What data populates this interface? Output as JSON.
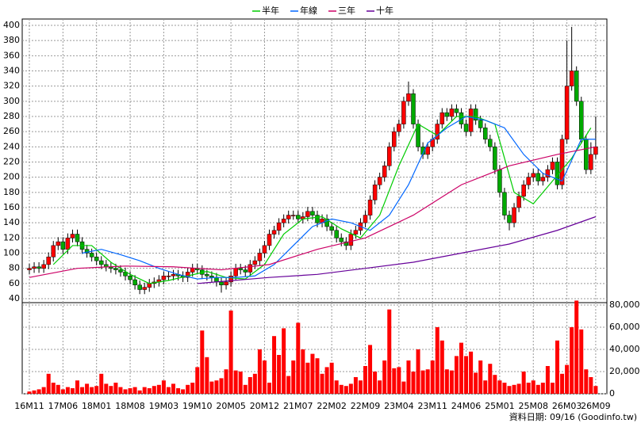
{
  "chart_data": {
    "type": "candlestick",
    "legend": [
      {
        "name": "半年",
        "color": "#00cc00"
      },
      {
        "name": "年線",
        "color": "#0066ff"
      },
      {
        "name": "三年",
        "color": "#cc0066"
      },
      {
        "name": "十年",
        "color": "#660099"
      }
    ],
    "footer": "資料日期: 09/16 (Goodinfo.tw)",
    "categories": [
      "16M11",
      null,
      null,
      null,
      null,
      null,
      null,
      "17M06",
      null,
      null,
      null,
      null,
      null,
      null,
      "18M01",
      null,
      null,
      null,
      null,
      null,
      null,
      "18M08",
      null,
      null,
      null,
      null,
      null,
      null,
      "19M03",
      null,
      null,
      null,
      null,
      null,
      null,
      "19M10",
      null,
      null,
      null,
      null,
      null,
      null,
      "20M05",
      null,
      null,
      null,
      null,
      null,
      null,
      "20M12",
      null,
      null,
      null,
      null,
      null,
      null,
      "21M07",
      null,
      null,
      null,
      null,
      null,
      null,
      "22M02",
      null,
      null,
      null,
      null,
      null,
      null,
      "22M09",
      null,
      null,
      null,
      null,
      null,
      null,
      "23M04",
      null,
      null,
      null,
      null,
      null,
      null,
      "23M11",
      null,
      null,
      null,
      null,
      null,
      null,
      "24M06",
      null,
      null,
      null,
      null,
      null,
      null,
      "25M01",
      null,
      null,
      null,
      null,
      null,
      null,
      "25M08",
      null,
      null,
      null,
      null,
      null,
      null,
      "26M03",
      null,
      null,
      null,
      null,
      null,
      "26M09"
    ],
    "open": [
      78,
      80,
      82,
      80,
      85,
      95,
      110,
      115,
      105,
      120,
      125,
      115,
      105,
      100,
      95,
      90,
      85,
      82,
      80,
      78,
      75,
      70,
      65,
      58,
      52,
      55,
      60,
      62,
      65,
      70,
      70,
      72,
      70,
      68,
      75,
      80,
      78,
      72,
      70,
      68,
      62,
      58,
      62,
      70,
      80,
      78,
      75,
      85,
      90,
      100,
      110,
      125,
      130,
      140,
      145,
      150,
      150,
      145,
      148,
      155,
      150,
      140,
      145,
      135,
      130,
      120,
      115,
      110,
      125,
      130,
      140,
      150,
      170,
      190,
      200,
      215,
      240,
      260,
      270,
      300,
      310,
      270,
      240,
      230,
      240,
      250,
      270,
      285,
      280,
      290,
      285,
      270,
      260,
      290,
      275,
      265,
      250,
      240,
      210,
      180,
      150,
      140,
      160,
      175,
      190,
      200,
      205,
      195,
      200,
      210,
      220,
      190,
      250,
      320,
      340,
      300,
      250,
      210,
      230
    ],
    "high": [
      86,
      88,
      88,
      91,
      101,
      116,
      121,
      121,
      126,
      131,
      131,
      121,
      111,
      106,
      101,
      96,
      91,
      88,
      86,
      84,
      81,
      76,
      71,
      64,
      61,
      66,
      68,
      71,
      76,
      76,
      78,
      78,
      76,
      81,
      86,
      86,
      84,
      78,
      76,
      74,
      68,
      68,
      76,
      86,
      86,
      84,
      91,
      96,
      106,
      116,
      131,
      136,
      146,
      151,
      156,
      156,
      156,
      154,
      161,
      161,
      156,
      151,
      151,
      141,
      136,
      126,
      121,
      131,
      136,
      146,
      156,
      176,
      196,
      206,
      221,
      246,
      266,
      276,
      306,
      326,
      316,
      276,
      246,
      246,
      256,
      276,
      291,
      291,
      296,
      296,
      291,
      276,
      296,
      296,
      281,
      271,
      256,
      246,
      216,
      186,
      156,
      166,
      181,
      196,
      206,
      211,
      211,
      206,
      216,
      226,
      226,
      256,
      380,
      398,
      346,
      306,
      256,
      246,
      280
    ],
    "low": [
      72,
      74,
      74,
      74,
      79,
      89,
      104,
      99,
      99,
      114,
      109,
      99,
      94,
      89,
      84,
      79,
      76,
      74,
      72,
      69,
      64,
      59,
      52,
      46,
      46,
      49,
      54,
      56,
      59,
      64,
      64,
      64,
      62,
      62,
      69,
      72,
      66,
      64,
      62,
      56,
      48,
      52,
      56,
      64,
      72,
      69,
      69,
      79,
      84,
      94,
      104,
      119,
      124,
      134,
      139,
      144,
      139,
      139,
      142,
      144,
      134,
      134,
      129,
      124,
      114,
      109,
      104,
      104,
      119,
      124,
      134,
      144,
      164,
      184,
      194,
      209,
      234,
      254,
      264,
      294,
      264,
      234,
      224,
      224,
      234,
      244,
      264,
      274,
      274,
      279,
      264,
      254,
      254,
      269,
      259,
      244,
      234,
      204,
      174,
      144,
      130,
      134,
      154,
      169,
      184,
      194,
      189,
      189,
      194,
      204,
      184,
      184,
      244,
      314,
      294,
      244,
      204,
      204,
      224
    ],
    "close": [
      80,
      82,
      80,
      85,
      95,
      110,
      115,
      105,
      120,
      125,
      115,
      105,
      100,
      95,
      90,
      85,
      82,
      80,
      78,
      75,
      70,
      65,
      58,
      52,
      55,
      60,
      62,
      65,
      70,
      70,
      72,
      70,
      68,
      75,
      80,
      78,
      72,
      70,
      68,
      62,
      58,
      62,
      70,
      80,
      78,
      75,
      85,
      90,
      100,
      110,
      125,
      130,
      140,
      145,
      150,
      150,
      145,
      148,
      155,
      150,
      140,
      145,
      135,
      130,
      120,
      115,
      110,
      125,
      130,
      140,
      150,
      170,
      190,
      200,
      215,
      240,
      260,
      270,
      300,
      310,
      270,
      240,
      230,
      240,
      250,
      270,
      285,
      280,
      290,
      285,
      270,
      260,
      290,
      275,
      265,
      250,
      240,
      210,
      180,
      150,
      140,
      160,
      175,
      190,
      200,
      205,
      195,
      200,
      210,
      220,
      190,
      250,
      320,
      340,
      300,
      250,
      210,
      230,
      240
    ],
    "volume": [
      2000,
      3000,
      4000,
      6000,
      18000,
      10000,
      8000,
      4000,
      6000,
      5000,
      12000,
      6000,
      9000,
      6000,
      7000,
      18000,
      9000,
      7000,
      10000,
      6000,
      4000,
      5000,
      6000,
      3000,
      6000,
      5000,
      7000,
      8000,
      12000,
      6000,
      9000,
      5000,
      4000,
      8000,
      10000,
      24000,
      57000,
      33000,
      11000,
      12000,
      14000,
      22000,
      75000,
      21000,
      20000,
      8000,
      15000,
      18000,
      40000,
      30000,
      10000,
      52000,
      35000,
      59000,
      16000,
      30000,
      64000,
      40000,
      28000,
      36000,
      32000,
      18000,
      24000,
      28000,
      12000,
      8000,
      7000,
      9000,
      15000,
      12000,
      25000,
      44000,
      20000,
      12000,
      30000,
      76000,
      23000,
      24000,
      11000,
      30000,
      20000,
      40000,
      21000,
      22000,
      30000,
      60000,
      48000,
      22000,
      21000,
      34000,
      46000,
      34000,
      38000,
      19000,
      30000,
      12000,
      27000,
      17000,
      12000,
      10000,
      7000,
      8000,
      9000,
      20000,
      10000,
      12000,
      8000,
      10000,
      25000,
      10000,
      48000,
      18000,
      26000,
      60000,
      84000,
      58000,
      22000,
      15000,
      7000
    ],
    "ma": [
      {
        "name": "半年",
        "color": "#00cc00",
        "x": [
          5,
          9,
          13,
          17,
          21,
          25,
          29,
          33,
          37,
          41,
          45,
          49,
          53,
          57,
          61,
          65,
          69,
          73,
          77,
          81,
          85,
          89,
          93,
          97,
          101,
          105,
          109,
          113,
          117
        ],
        "values": [
          85,
          110,
          110,
          88,
          72,
          60,
          64,
          70,
          76,
          68,
          66,
          85,
          125,
          145,
          148,
          132,
          120,
          150,
          215,
          270,
          255,
          280,
          280,
          270,
          180,
          165,
          195,
          225,
          265
        ]
      },
      {
        "name": "年線",
        "color": "#0066ff",
        "x": [
          11,
          15,
          19,
          23,
          27,
          31,
          35,
          39,
          43,
          47,
          51,
          55,
          59,
          63,
          67,
          71,
          75,
          79,
          83,
          87,
          91,
          95,
          99,
          103,
          107,
          111,
          115,
          118
        ],
        "values": [
          100,
          105,
          98,
          90,
          80,
          72,
          66,
          68,
          68,
          70,
          85,
          110,
          135,
          145,
          140,
          130,
          150,
          190,
          245,
          265,
          280,
          275,
          265,
          230,
          205,
          195,
          250,
          250
        ]
      },
      {
        "name": "三年",
        "color": "#cc0066",
        "x": [
          0,
          10,
          20,
          30,
          40,
          50,
          60,
          70,
          80,
          90,
          100,
          110,
          118
        ],
        "values": [
          68,
          80,
          83,
          82,
          78,
          85,
          105,
          120,
          150,
          190,
          215,
          230,
          240
        ]
      },
      {
        "name": "十年",
        "color": "#660099",
        "x": [
          35,
          50,
          60,
          70,
          80,
          90,
          100,
          110,
          118
        ],
        "values": [
          60,
          68,
          72,
          80,
          88,
          100,
          112,
          130,
          148
        ]
      }
    ],
    "ylim": [
      40,
      400
    ],
    "yticks": [
      40,
      60,
      80,
      100,
      120,
      140,
      160,
      180,
      200,
      220,
      240,
      260,
      280,
      300,
      320,
      340,
      360,
      380,
      400
    ],
    "y2lim": [
      0,
      80000
    ],
    "y2ticks": [
      0,
      {
        "value": 20000,
        "label": "20,000"
      },
      {
        "value": 40000,
        "label": "40,000"
      },
      {
        "value": 60000,
        "label": "60,000"
      },
      {
        "value": 80000,
        "label": "80,000"
      }
    ],
    "up_color": "#ff0000",
    "down_color": "#00aa00",
    "grid": true
  }
}
